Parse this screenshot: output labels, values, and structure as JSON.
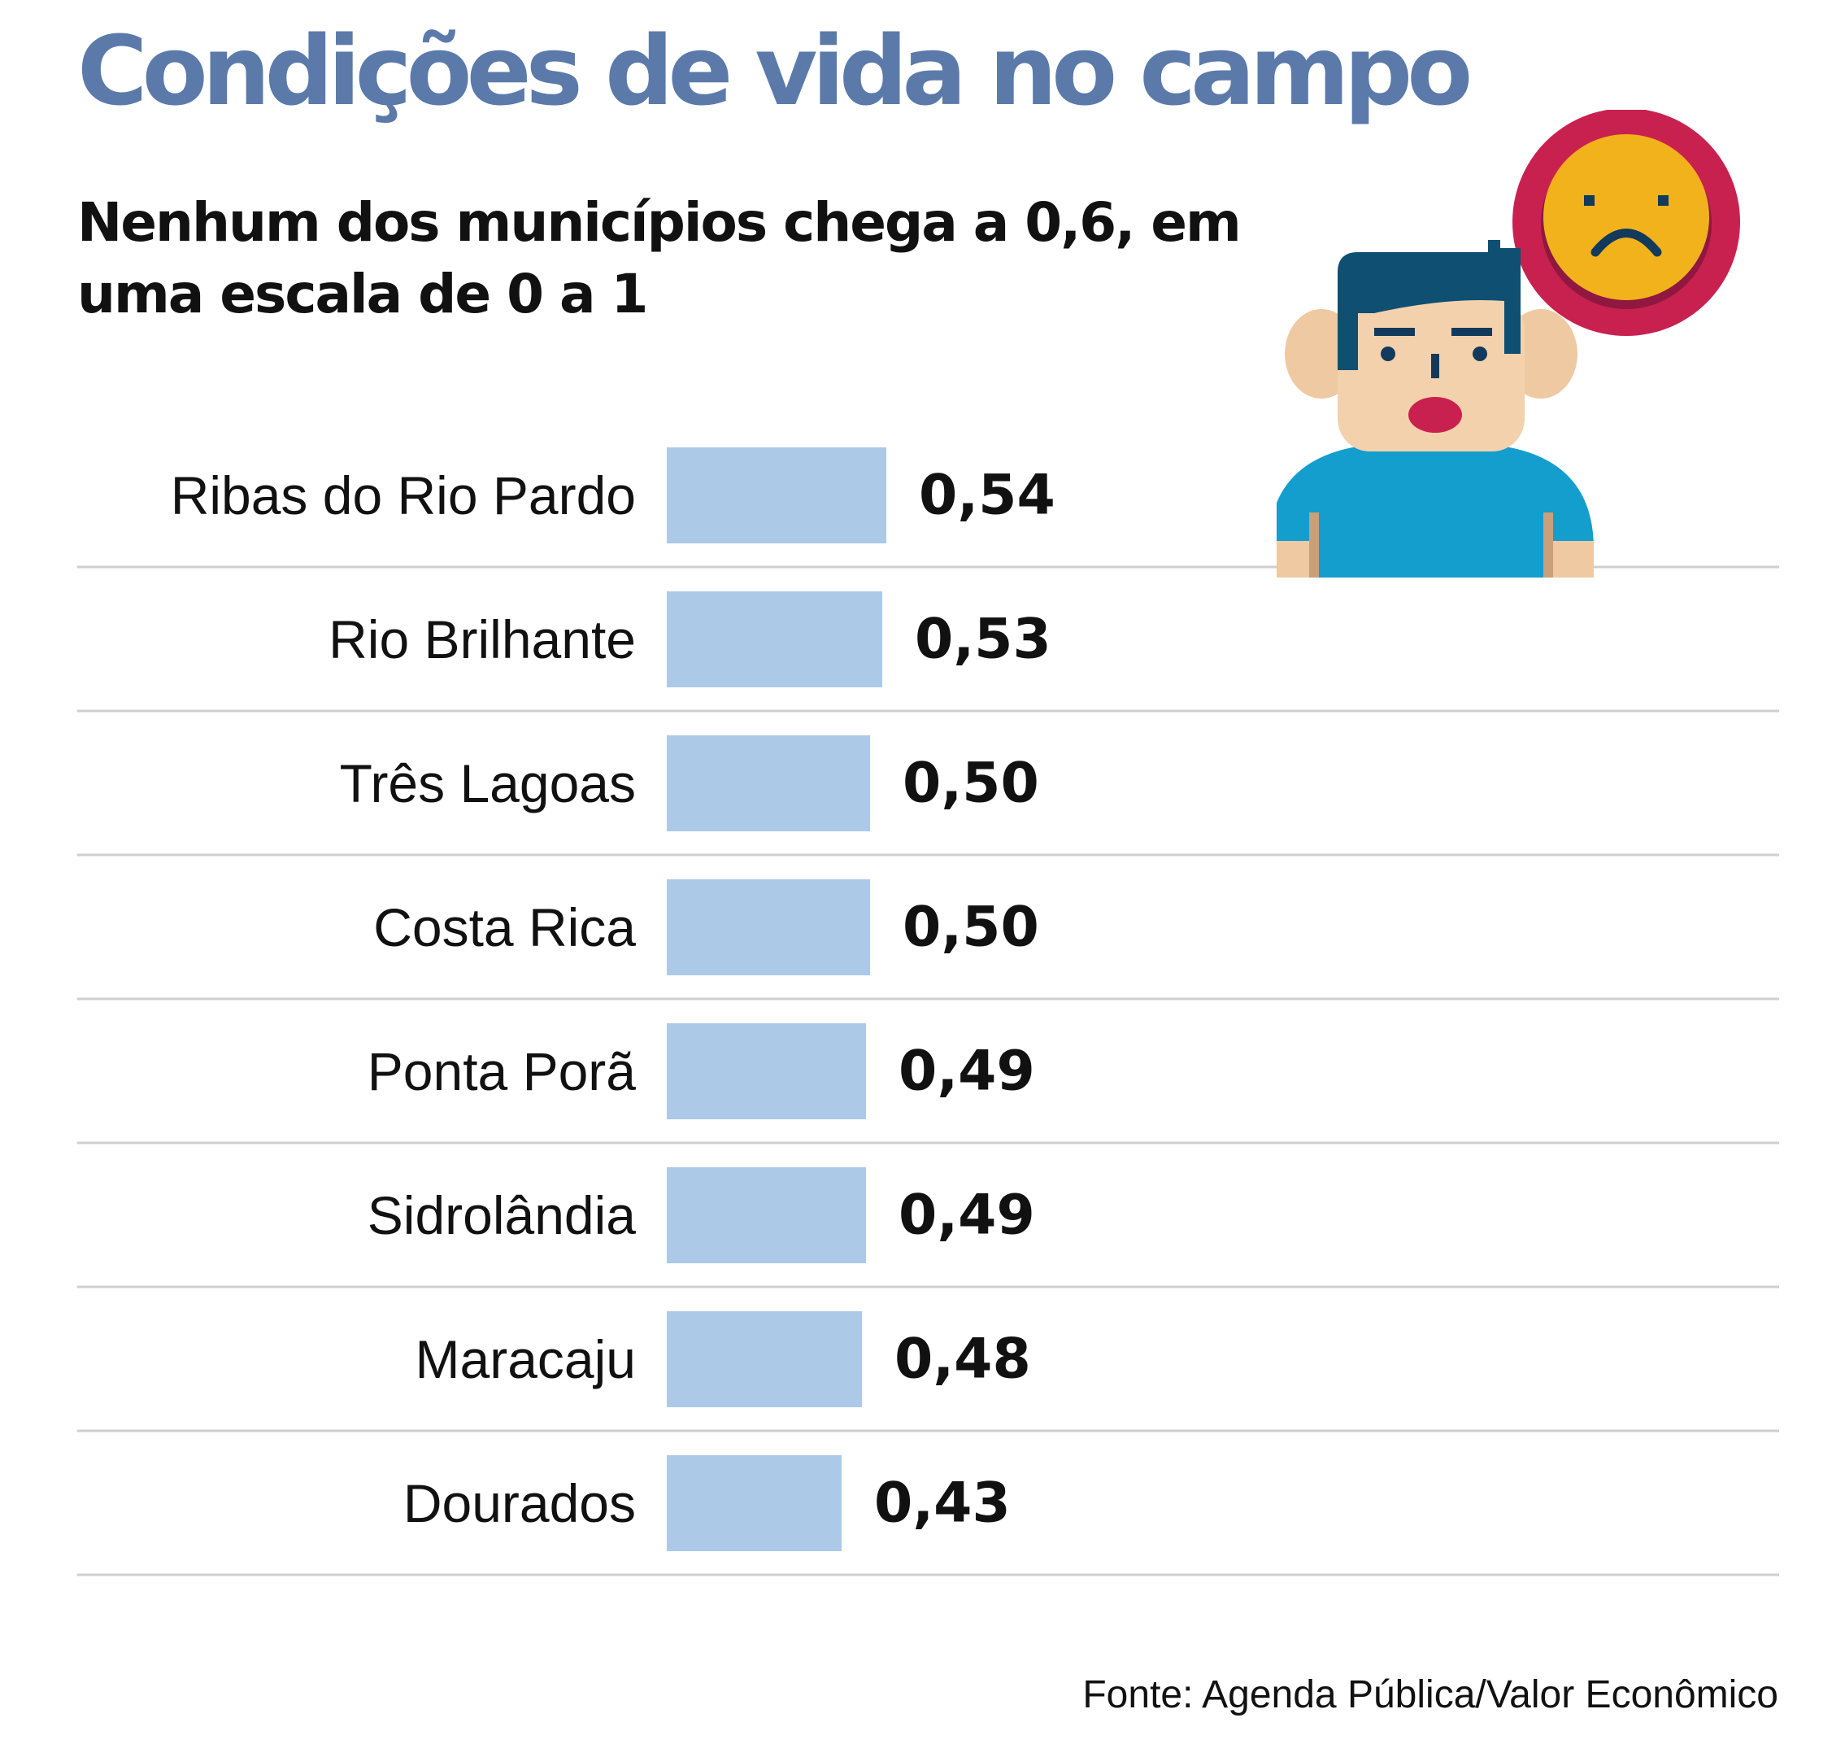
{
  "title": "Condições de vida no campo",
  "subtitle": "Nenhum dos municípios chega a 0,6, em uma escala de 0 a 1",
  "source": "Fonte: Agenda Pública/Valor Econômico",
  "colors": {
    "title": "#5b7aaa",
    "bar": "#adc9e8",
    "divider": "#cfcfcf",
    "text": "#111111"
  },
  "illustration": {
    "icon": "sad-person-with-frown-speech-bubble-icon"
  },
  "chart_data": {
    "type": "bar",
    "orientation": "horizontal",
    "categories": [
      "Ribas do Rio Pardo",
      "Rio Brilhante",
      "Três Lagoas",
      "Costa Rica",
      "Ponta Porã",
      "Sidrolândia",
      "Maracaju",
      "Dourados"
    ],
    "values": [
      0.54,
      0.53,
      0.5,
      0.5,
      0.49,
      0.49,
      0.48,
      0.43
    ],
    "value_labels": [
      "0,54",
      "0,53",
      "0,50",
      "0,50",
      "0,49",
      "0,49",
      "0,48",
      "0,43"
    ],
    "xlim": [
      0,
      1
    ],
    "grid": false,
    "legend": "none"
  }
}
